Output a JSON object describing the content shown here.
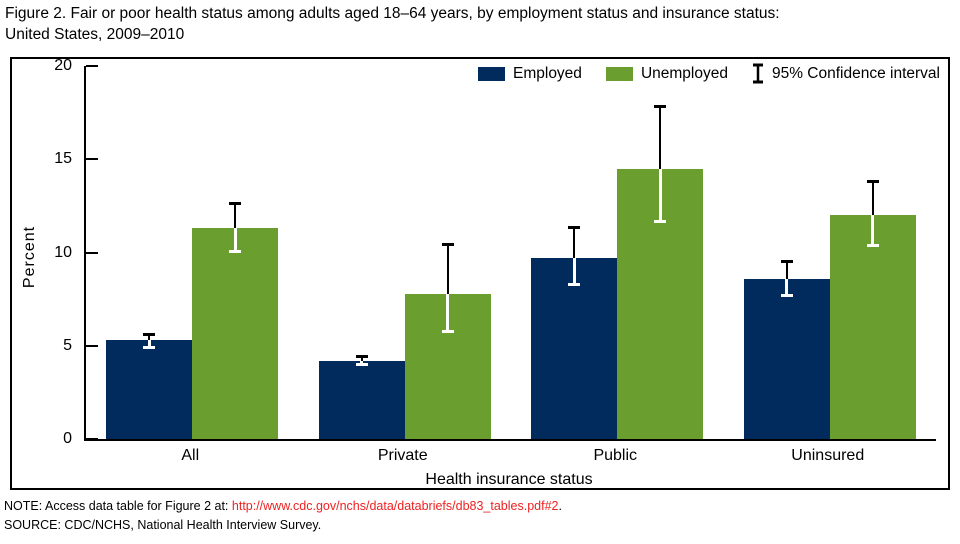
{
  "title": "Figure 2. Fair or poor health status among adults aged 18–64 years, by employment status and insurance status:\nUnited States, 2009–2010",
  "legend": {
    "items": [
      {
        "label": "Employed"
      },
      {
        "label": "Unemployed"
      },
      {
        "label": "95% Confidence interval",
        "symbol": "error-bar"
      }
    ]
  },
  "chart_data": {
    "type": "bar",
    "title": "Figure 2. Fair or poor health status among adults aged 18–64 years, by employment status and insurance status: United States, 2009–2010",
    "categories": [
      "All",
      "Private",
      "Public",
      "Uninsured"
    ],
    "series": [
      {
        "name": "Employed",
        "color": "#002b5c",
        "values": [
          5.3,
          4.2,
          9.7,
          8.6
        ],
        "ci_low": [
          4.8,
          3.9,
          8.2,
          7.6
        ],
        "ci_high": [
          5.7,
          4.5,
          11.4,
          9.6
        ]
      },
      {
        "name": "Unemployed",
        "color": "#6a9f2f",
        "values": [
          11.3,
          7.8,
          14.5,
          12.0
        ],
        "ci_low": [
          10.0,
          5.7,
          11.6,
          10.3
        ],
        "ci_high": [
          12.7,
          10.5,
          17.9,
          13.9
        ]
      }
    ],
    "xlabel": "Health insurance status",
    "ylabel": "Percent",
    "ylim": [
      0,
      20
    ],
    "yticks": [
      0,
      5,
      10,
      15,
      20
    ],
    "grid": false,
    "legend_position": "top-right",
    "error_bars": "95% Confidence interval"
  },
  "footer": {
    "note_prefix": "NOTE: Access data table for Figure 2 at: ",
    "note_link": "http://www.cdc.gov/nchs/data/databriefs/db83_tables.pdf#2",
    "note_suffix": ".",
    "source": "SOURCE: CDC/NCHS, National Health Interview Survey."
  }
}
